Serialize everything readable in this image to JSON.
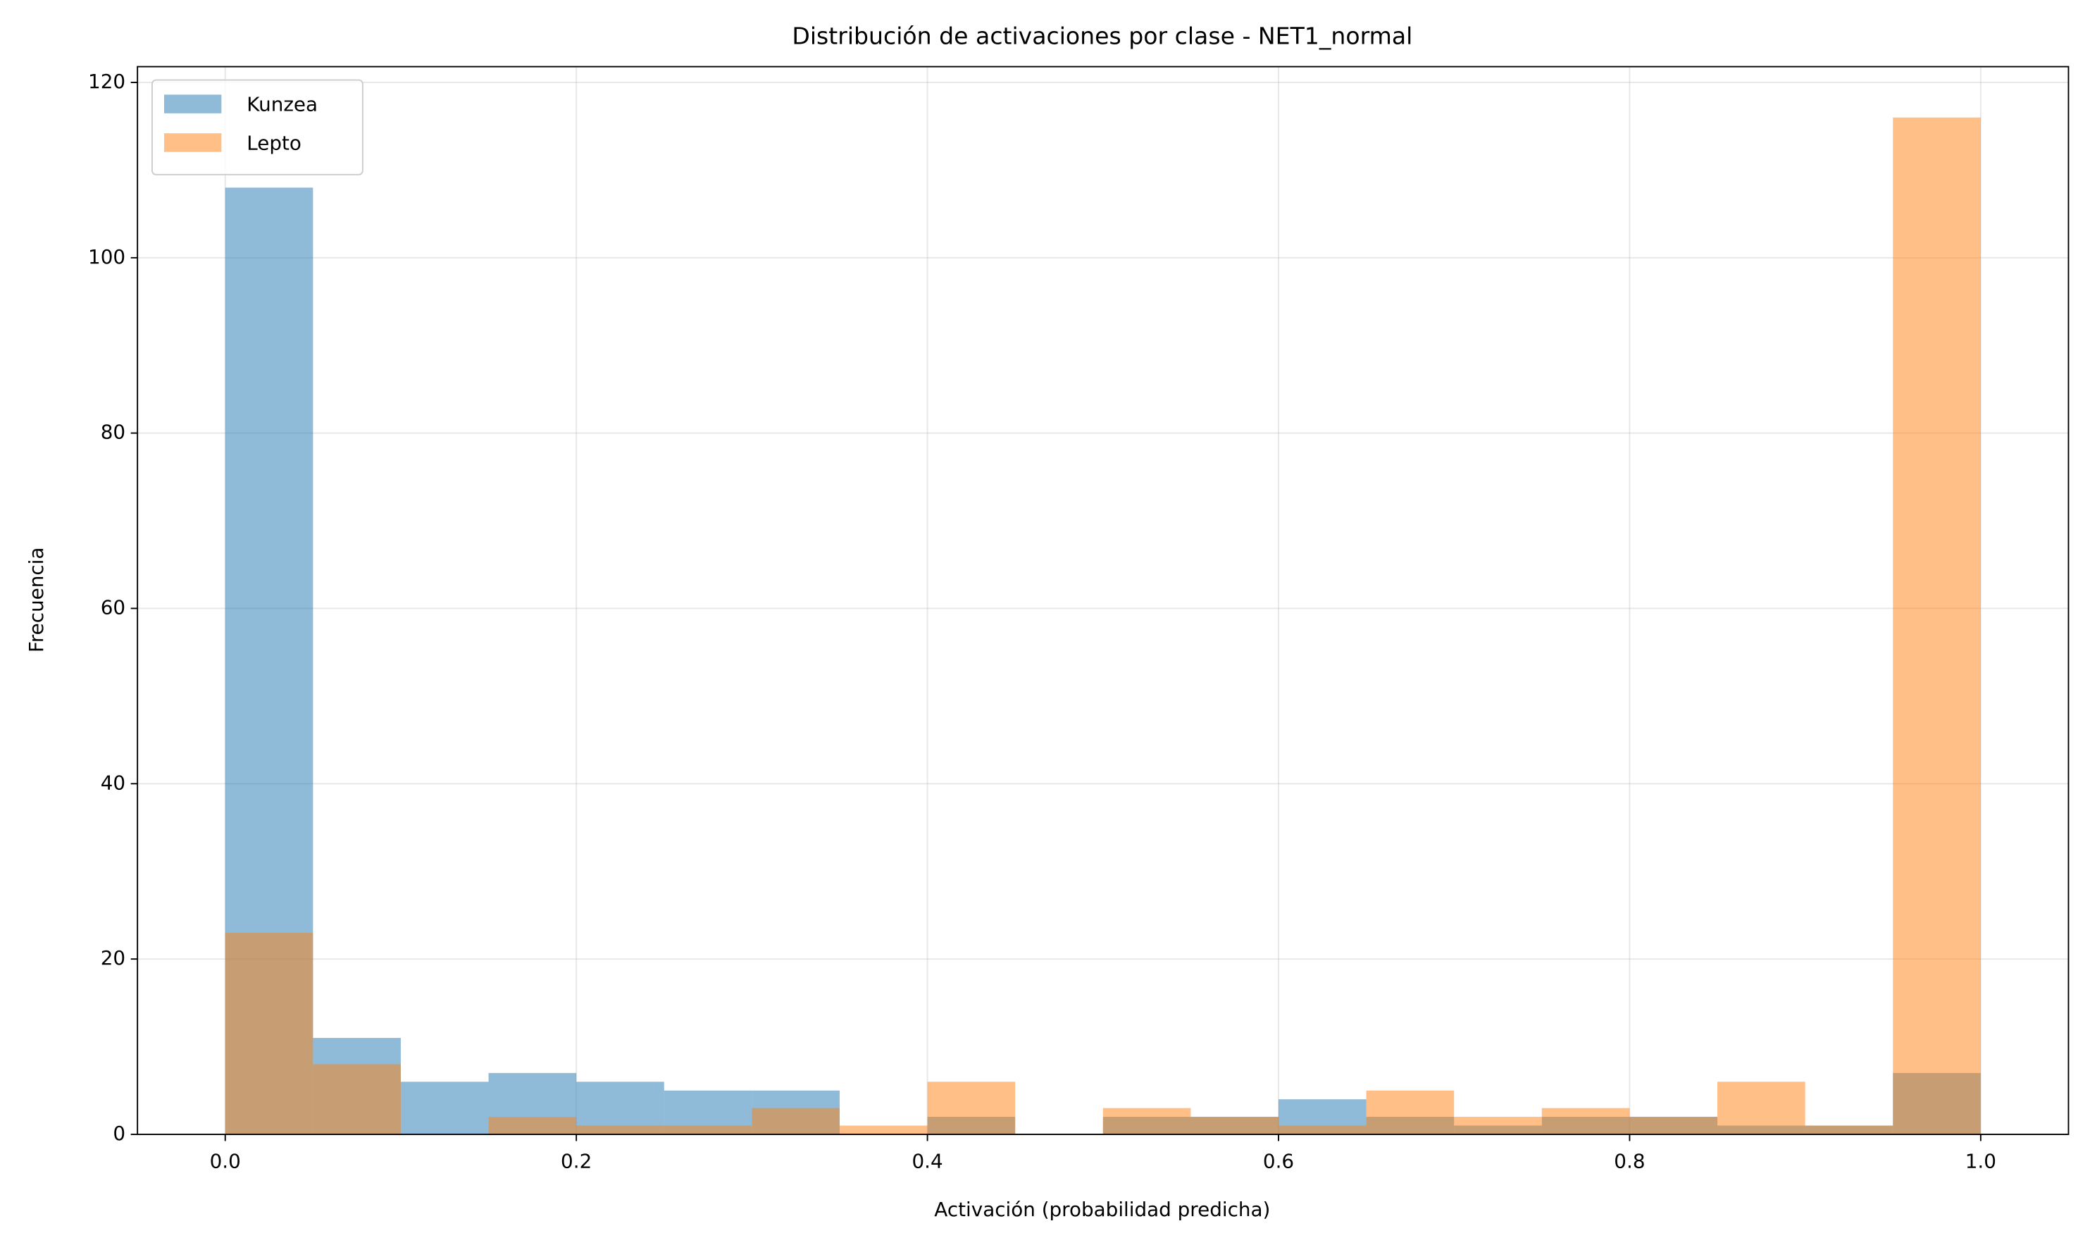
{
  "chart_data": {
    "type": "histogram",
    "title": "Distribución de activaciones por clase - NET1_normal",
    "xlabel": "Activación (probabilidad predicha)",
    "ylabel": "Frecuencia",
    "bins": [
      0,
      0.05,
      0.1,
      0.15,
      0.2,
      0.25,
      0.3,
      0.35,
      0.4,
      0.45,
      0.5,
      0.55,
      0.6,
      0.65,
      0.7,
      0.75,
      0.8,
      0.85,
      0.9,
      0.95,
      1.0
    ],
    "series": [
      {
        "name": "Kunzea",
        "color": "#1f77b4",
        "values": [
          108,
          11,
          6,
          7,
          6,
          5,
          5,
          0,
          2,
          0,
          2,
          2,
          4,
          2,
          1,
          2,
          2,
          1,
          1,
          7
        ]
      },
      {
        "name": "Lepto",
        "color": "#ff7f0e",
        "values": [
          23,
          8,
          0,
          2,
          1,
          1,
          3,
          1,
          6,
          0,
          3,
          2,
          1,
          5,
          2,
          3,
          2,
          6,
          1,
          116
        ]
      }
    ],
    "alpha": 0.5,
    "xlim": [
      -0.05,
      1.05
    ],
    "ylim": [
      0,
      121.8
    ],
    "xticks": [
      {
        "value": 0,
        "label": "0.0"
      },
      0.2,
      0.4,
      0.6,
      0.8,
      {
        "value": 1,
        "label": "1.0"
      }
    ],
    "yticks": [
      0,
      20,
      40,
      60,
      80,
      100,
      120
    ],
    "grid": true,
    "legend": "upper left"
  }
}
